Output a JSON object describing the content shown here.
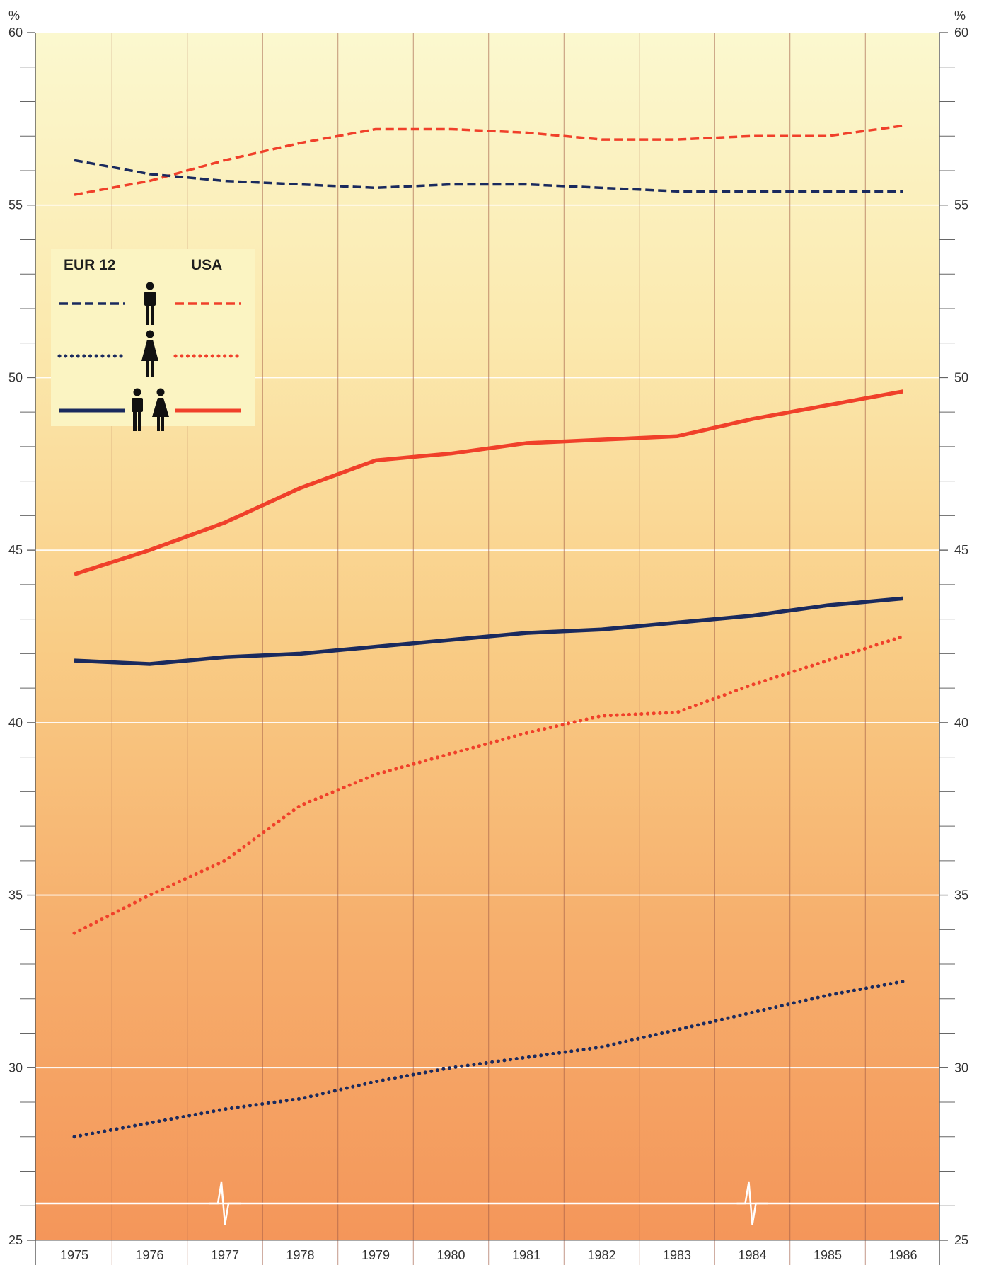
{
  "chart_data": {
    "type": "line",
    "unit": "%",
    "x": [
      "1975",
      "1976",
      "1977",
      "1978",
      "1979",
      "1980",
      "1981",
      "1982",
      "1983",
      "1984",
      "1985",
      "1986"
    ],
    "ylim": [
      25,
      60
    ],
    "yticks": [
      "25",
      "30",
      "35",
      "40",
      "45",
      "50",
      "55",
      "60"
    ],
    "grid": true,
    "axis_break": true,
    "legend": {
      "position": "top-left",
      "headers": [
        "EUR 12",
        "USA"
      ],
      "rows": [
        {
          "icon": "man-icon"
        },
        {
          "icon": "woman-icon"
        },
        {
          "icon": "man-woman-icon"
        }
      ]
    },
    "colors": {
      "eur12": "#1a2a5e",
      "usa": "#f0402a"
    },
    "series": [
      {
        "group": "USA",
        "gender": "men",
        "style": "dashed",
        "color": "#f0402a",
        "values": [
          55.3,
          55.7,
          56.3,
          56.8,
          57.2,
          57.2,
          57.1,
          56.9,
          56.9,
          57.0,
          57.0,
          57.3
        ]
      },
      {
        "group": "EUR 12",
        "gender": "men",
        "style": "dashed",
        "color": "#1a2a5e",
        "values": [
          56.3,
          55.9,
          55.7,
          55.6,
          55.5,
          55.6,
          55.6,
          55.5,
          55.4,
          55.4,
          55.4,
          55.4
        ]
      },
      {
        "group": "USA",
        "gender": "total",
        "style": "solid",
        "color": "#f0402a",
        "values": [
          44.3,
          45.0,
          45.8,
          46.8,
          47.6,
          47.8,
          48.1,
          48.2,
          48.3,
          48.8,
          49.2,
          49.6
        ]
      },
      {
        "group": "EUR 12",
        "gender": "total",
        "style": "solid",
        "color": "#1a2a5e",
        "values": [
          41.8,
          41.7,
          41.9,
          42.0,
          42.2,
          42.4,
          42.6,
          42.7,
          42.9,
          43.1,
          43.4,
          43.6
        ]
      },
      {
        "group": "USA",
        "gender": "women",
        "style": "dotted",
        "color": "#f0402a",
        "values": [
          33.9,
          35.0,
          36.0,
          37.6,
          38.5,
          39.1,
          39.7,
          40.2,
          40.3,
          41.1,
          41.8,
          42.5
        ]
      },
      {
        "group": "EUR 12",
        "gender": "women",
        "style": "dotted",
        "color": "#1a2a5e",
        "values": [
          28.0,
          28.4,
          28.8,
          29.1,
          29.6,
          30.0,
          30.3,
          30.6,
          31.1,
          31.6,
          32.1,
          32.5
        ]
      }
    ]
  }
}
